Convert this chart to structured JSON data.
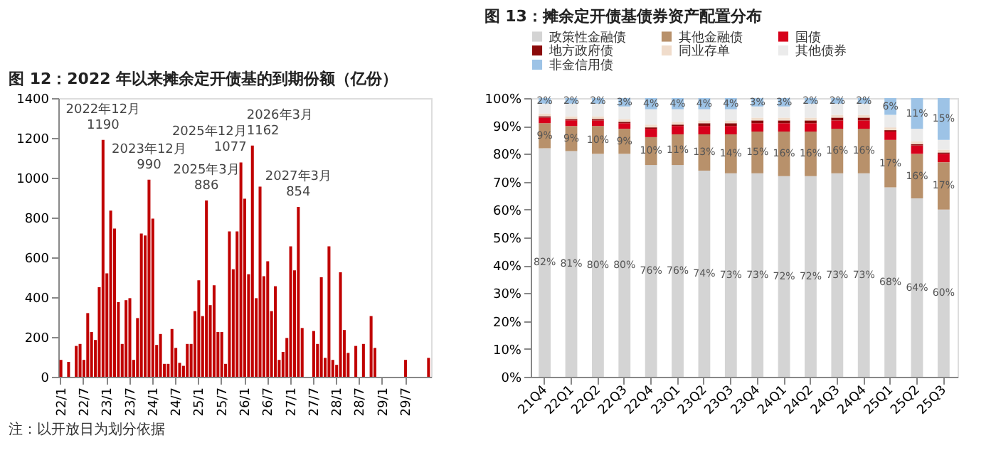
{
  "chart_data": [
    {
      "type": "bar",
      "title": "图 12：2022 年以来摊余定开债基的到期份额（亿份）",
      "categories": [
        "22/1",
        null,
        null,
        null,
        null,
        null,
        "22/7",
        null,
        null,
        null,
        null,
        null,
        "23/1",
        null,
        null,
        null,
        null,
        null,
        "23/7",
        null,
        null,
        null,
        null,
        null,
        "24/1",
        null,
        null,
        null,
        null,
        null,
        "24/7",
        null,
        null,
        null,
        null,
        null,
        "25/1",
        null,
        null,
        null,
        null,
        null,
        "25/7",
        null,
        null,
        null,
        null,
        null,
        "26/1",
        null,
        null,
        null,
        null,
        null,
        "26/7",
        null,
        null,
        null,
        null,
        null,
        "27/1",
        null,
        null,
        null,
        null,
        null,
        "27/7",
        null,
        null,
        null,
        null,
        null,
        "28/1",
        null,
        null,
        null,
        null,
        null,
        "28/7",
        null,
        null,
        null,
        null,
        null,
        "29/1",
        null,
        null,
        null,
        null,
        null,
        "29/7",
        null,
        null,
        null,
        null,
        null,
        null
      ],
      "series": [
        {
          "color": "#c00000",
          "values": [
            85,
            null,
            75,
            null,
            155,
            165,
            85,
            320,
            225,
            185,
            450,
            1190,
            520,
            835,
            745,
            375,
            165,
            385,
            395,
            85,
            295,
            720,
            710,
            990,
            795,
            160,
            215,
            65,
            65,
            240,
            145,
            70,
            55,
            165,
            165,
            330,
            485,
            305,
            886,
            360,
            460,
            225,
            225,
            65,
            730,
            540,
            730,
            1077,
            895,
            515,
            1162,
            395,
            955,
            505,
            580,
            330,
            455,
            85,
            125,
            195,
            655,
            535,
            854,
            245,
            null,
            null,
            230,
            165,
            500,
            95,
            655,
            85,
            60,
            525,
            235,
            120,
            null,
            155,
            null,
            165,
            null,
            305,
            145,
            null,
            null,
            null,
            null,
            null,
            null,
            null,
            85,
            null,
            null,
            null,
            null,
            null,
            95
          ],
          "value_labels": [
            null,
            null,
            null,
            null,
            null,
            null,
            null,
            null,
            null,
            null,
            null,
            "1190",
            null,
            null,
            null,
            null,
            null,
            null,
            null,
            null,
            null,
            null,
            null,
            "990",
            null,
            null,
            null,
            null,
            null,
            null,
            null,
            null,
            null,
            null,
            null,
            null,
            null,
            null,
            "886",
            null,
            null,
            null,
            null,
            null,
            null,
            null,
            null,
            "1077",
            null,
            null,
            "1162",
            null,
            null,
            null,
            null,
            null,
            null,
            null,
            null,
            null,
            null,
            null,
            "854",
            null,
            null,
            null,
            null,
            null,
            null,
            null,
            null,
            null,
            null,
            null,
            null,
            null,
            null,
            null,
            null,
            null,
            null,
            null,
            null,
            null,
            null,
            null,
            null,
            null,
            null,
            null,
            null,
            null,
            null,
            null,
            null,
            null,
            null
          ]
        }
      ],
      "ylim": [
        0,
        1400
      ],
      "yticks": [
        0,
        200,
        400,
        600,
        800,
        1000,
        1200,
        1400
      ],
      "grid": false,
      "legend": false,
      "annotations": [
        "2022年12月",
        "2023年12月",
        "2025年3月",
        "2025年12月",
        "2026年3月",
        "2027年3月",
        "注：以开放日为划分依据"
      ]
    },
    {
      "type": "bar",
      "title": "图 13：摊余定开债基债券资产配置分布",
      "stacked": true,
      "categories": [
        "21Q4",
        "22Q1",
        "22Q2",
        "22Q3",
        "22Q4",
        "23Q1",
        "23Q2",
        "23Q3",
        "23Q4",
        "24Q1",
        "24Q2",
        "24Q3",
        "24Q4",
        "25Q1",
        "25Q2",
        "25Q3"
      ],
      "series": [
        {
          "name": "政策性金融债",
          "color": "#d4d4d4",
          "values": [
            82,
            81,
            80,
            80,
            76,
            76,
            74,
            73,
            73,
            72,
            72,
            73,
            73,
            68,
            64,
            60
          ],
          "value_labels": [
            "82%",
            "81%",
            "80%",
            "80%",
            "76%",
            "76%",
            "74%",
            "73%",
            "73%",
            "72%",
            "72%",
            "73%",
            "73%",
            "68%",
            "64%",
            "60%"
          ]
        },
        {
          "name": "其他金融债",
          "color": "#b8916b",
          "values": [
            9,
            9,
            10,
            9,
            10,
            11,
            13,
            14,
            15,
            16,
            16,
            16,
            16,
            17,
            16,
            17
          ],
          "value_labels": [
            "9%",
            "9%",
            "10%",
            "9%",
            "10%",
            "11%",
            "13%",
            "14%",
            "15%",
            "16%",
            "16%",
            "16%",
            "16%",
            "17%",
            "16%",
            "17%"
          ]
        },
        {
          "name": "国债",
          "color": "#d7001b",
          "values": [
            2,
            2,
            2,
            2,
            3,
            3,
            3,
            3,
            3,
            3,
            3,
            3,
            3,
            3,
            3,
            3
          ]
        },
        {
          "name": "地方政府债",
          "color": "#8b0a0a",
          "values": [
            0.5,
            0.5,
            0.5,
            0.5,
            0.5,
            0.5,
            1,
            1,
            1,
            1,
            1,
            1,
            1,
            0.5,
            0.5,
            0.5
          ]
        },
        {
          "name": "同业存单",
          "color": "#f0dccb",
          "values": [
            1,
            1,
            1,
            1,
            1,
            1,
            1,
            1,
            1,
            1,
            1,
            1,
            1,
            1,
            1,
            1
          ]
        },
        {
          "name": "其他债券",
          "color": "#ebebeb",
          "values": [
            3.5,
            4.5,
            4.5,
            4.5,
            5.5,
            4.5,
            4,
            4,
            4,
            4,
            5,
            4,
            4,
            4.5,
            4.5,
            3.5
          ]
        },
        {
          "name": "非金信用债",
          "color": "#9dc3e6",
          "values": [
            2,
            2,
            2,
            3,
            4,
            4,
            4,
            4,
            3,
            3,
            2,
            2,
            2,
            6,
            11,
            15
          ],
          "value_labels": [
            "2%",
            "2%",
            "2%",
            "3%",
            "4%",
            "4%",
            "4%",
            "4%",
            "3%",
            "3%",
            "2%",
            "2%",
            "2%",
            "6%",
            "11%",
            "15%"
          ]
        }
      ],
      "ylim": [
        0,
        100
      ],
      "yticks": [
        {
          "value": 0,
          "label": "0%"
        },
        {
          "value": 10,
          "label": "10%"
        },
        {
          "value": 20,
          "label": "20%"
        },
        {
          "value": 30,
          "label": "30%"
        },
        {
          "value": 40,
          "label": "40%"
        },
        {
          "value": 50,
          "label": "50%"
        },
        {
          "value": 60,
          "label": "60%"
        },
        {
          "value": 70,
          "label": "70%"
        },
        {
          "value": 80,
          "label": "80%"
        },
        {
          "value": 90,
          "label": "90%"
        },
        {
          "value": 100,
          "label": "100%"
        }
      ],
      "grid": false,
      "legend": "top"
    }
  ]
}
